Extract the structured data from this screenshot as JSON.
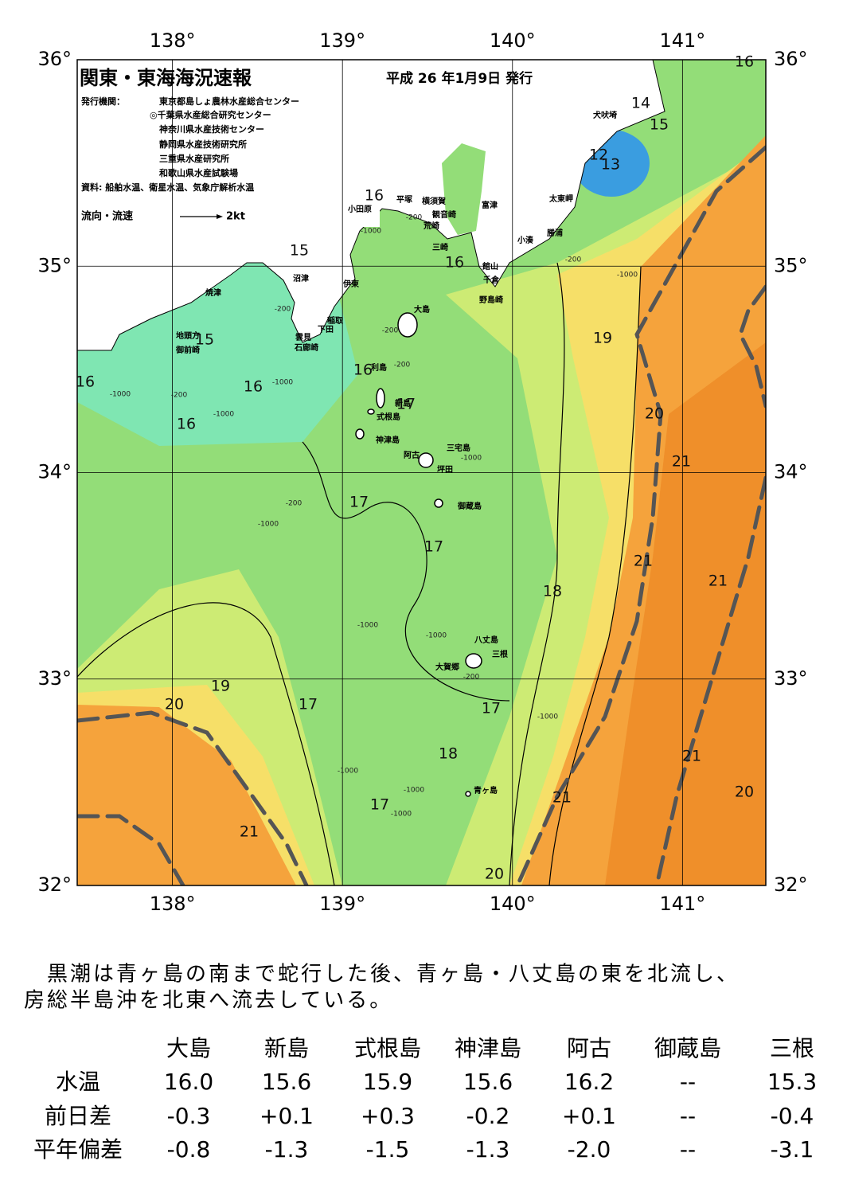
{
  "map": {
    "title": "関東・東海海況速報",
    "date": "平成 26 年1月9日 発行",
    "issuer_label": "発行機関：",
    "issuers": [
      "東京都島しょ農林水産総合センター",
      "◎千葉県水産総合研究センター",
      "神奈川県水産技術センター",
      "静岡県水産技術研究所",
      "三重県水産研究所",
      "和歌山県水産試験場"
    ],
    "source": "資料: 船舶水温、衛星水温、気象庁解析水温",
    "flow_legend": "流向・流速",
    "flow_unit": "2kt",
    "lonlim": [
      137.44,
      141.49
    ],
    "latlim": [
      32,
      36
    ],
    "lon_ticks": [
      {
        "value": 138,
        "label": "138°"
      },
      {
        "value": 139,
        "label": "139°"
      },
      {
        "value": 140,
        "label": "140°"
      },
      {
        "value": 141,
        "label": "141°"
      }
    ],
    "lat_ticks": [
      {
        "value": 36,
        "label": "36°"
      },
      {
        "value": 35,
        "label": "35°"
      },
      {
        "value": 34,
        "label": "34°"
      },
      {
        "value": 33,
        "label": "33°"
      },
      {
        "value": 32,
        "label": "32°"
      }
    ],
    "temperature_labels": [
      "16",
      "14",
      "15",
      "12",
      "13",
      "16",
      "15",
      "16",
      "19",
      "15",
      "16",
      "16",
      "16",
      "17",
      "16",
      "20",
      "21",
      "17",
      "17",
      "21",
      "21",
      "18",
      "19",
      "20",
      "17",
      "17",
      "18",
      "21",
      "20",
      "21",
      "17",
      "21",
      "20"
    ],
    "place_names": [
      "犬吠埼",
      "平塚",
      "横須賀",
      "小田原",
      "観音崎",
      "富津",
      "太東岬",
      "荒崎",
      "勝浦",
      "小湊",
      "三崎",
      "館山",
      "千倉",
      "沼津",
      "伊東",
      "野島崎",
      "焼津",
      "大島",
      "稲取",
      "下田",
      "地頭方",
      "雲見",
      "御前崎",
      "石廊崎",
      "利島",
      "新島",
      "式根島",
      "神津島",
      "三宅島",
      "阿古",
      "坪田",
      "御蔵島",
      "八丈島",
      "三根",
      "大賀郷",
      "青ヶ島"
    ],
    "depth_labels": [
      "-200",
      "-1000",
      "-200",
      "-1000",
      "-200",
      "-200",
      "-200",
      "-1000",
      "-200",
      "-1000",
      "-1000",
      "-1000",
      "-200",
      "-1000",
      "-1000",
      "-1000",
      "-200",
      "-1000",
      "-1000",
      "-1000",
      "-1000"
    ]
  },
  "summary": {
    "lines": [
      "　黒潮は青ヶ島の南まで蛇行した後、青ヶ島・八丈島の東を北流し、",
      "房総半島沖を北東へ流去している。"
    ]
  },
  "table": {
    "columns": [
      "大島",
      "新島",
      "式根島",
      "神津島",
      "阿古",
      "御蔵島",
      "三根"
    ],
    "rows": [
      {
        "label": "水温",
        "cells": [
          "16.0",
          "15.6",
          "15.9",
          "15.6",
          "16.2",
          "--",
          "15.3"
        ]
      },
      {
        "label": "前日差",
        "cells": [
          "-0.3",
          "+0.1",
          "+0.3",
          "-0.2",
          "+0.1",
          "--",
          "-0.4"
        ]
      },
      {
        "label": "平年偏差",
        "cells": [
          "-0.8",
          "-1.3",
          "-1.5",
          "-1.3",
          "-2.0",
          "--",
          "-3.1"
        ]
      }
    ]
  }
}
